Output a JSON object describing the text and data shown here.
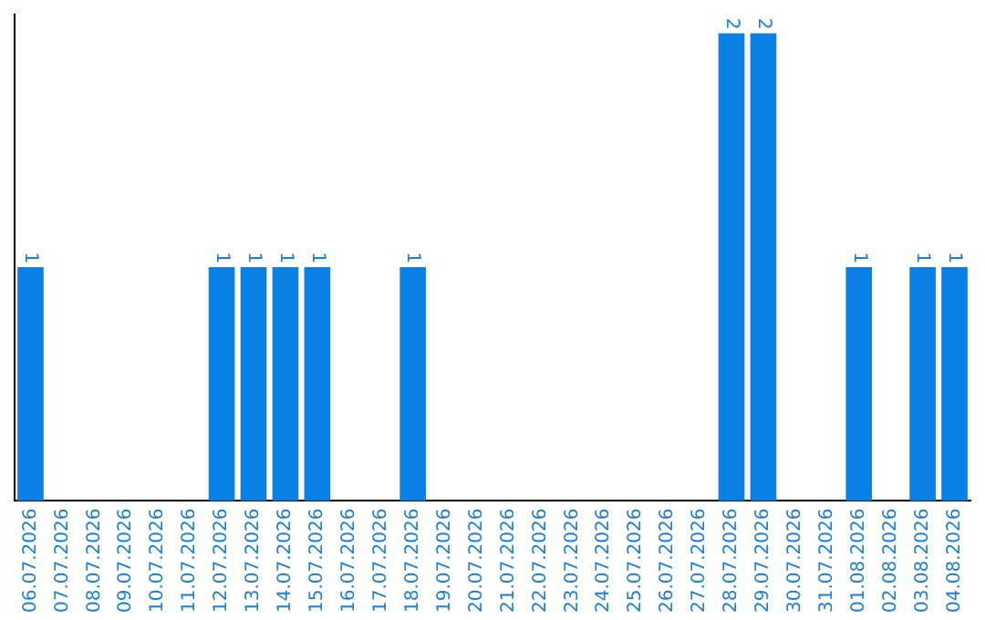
{
  "chart_data": {
    "type": "bar",
    "categories": [
      "06.07.2026",
      "07.07.2026",
      "08.07.2026",
      "09.07.2026",
      "10.07.2026",
      "11.07.2026",
      "12.07.2026",
      "13.07.2026",
      "14.07.2026",
      "15.07.2026",
      "16.07.2026",
      "17.07.2026",
      "18.07.2026",
      "19.07.2026",
      "20.07.2026",
      "21.07.2026",
      "22.07.2026",
      "23.07.2026",
      "24.07.2026",
      "25.07.2026",
      "26.07.2026",
      "27.07.2026",
      "28.07.2026",
      "29.07.2026",
      "30.07.2026",
      "31.07.2026",
      "01.08.2026",
      "02.08.2026",
      "03.08.2026",
      "04.08.2026"
    ],
    "values": [
      1,
      0,
      0,
      0,
      0,
      0,
      1,
      1,
      1,
      1,
      0,
      0,
      1,
      0,
      0,
      0,
      0,
      0,
      0,
      0,
      0,
      0,
      2,
      2,
      0,
      0,
      1,
      0,
      1,
      1
    ],
    "value_labels": [
      "1",
      null,
      null,
      null,
      null,
      null,
      "1",
      "1",
      "1",
      "1",
      null,
      null,
      "1",
      null,
      null,
      null,
      null,
      null,
      null,
      null,
      null,
      null,
      "2",
      "2",
      null,
      null,
      "1",
      null,
      "1",
      "1"
    ],
    "color": "#0a7fe6",
    "ylim": [
      0,
      2.08
    ],
    "tick_labels": "x",
    "grid": false,
    "legend": false
  }
}
